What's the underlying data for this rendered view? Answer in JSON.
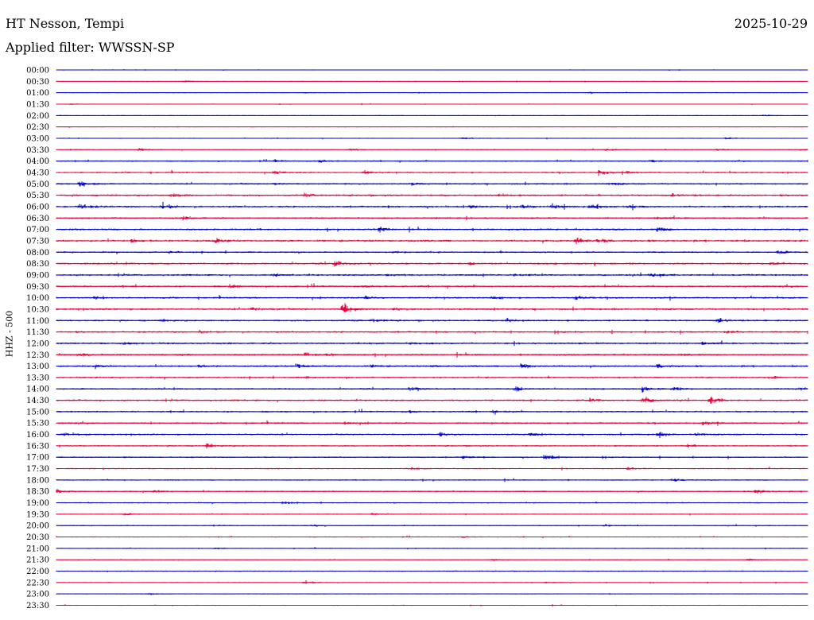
{
  "header": {
    "station": "HT Nesson, Tempi",
    "date": "2025-10-29",
    "filter_label": "Applied filter: WWSSN-SP"
  },
  "chart_data": {
    "type": "line",
    "title": "HT Nesson, Tempi",
    "ylabel": "HHZ - 500",
    "row_labels": [
      "00:00",
      "00:30",
      "01:00",
      "01:30",
      "02:00",
      "02:30",
      "03:00",
      "03:30",
      "04:00",
      "04:30",
      "05:00",
      "05:30",
      "06:00",
      "06:30",
      "07:00",
      "07:30",
      "08:00",
      "08:30",
      "09:00",
      "09:30",
      "10:00",
      "10:30",
      "11:00",
      "11:30",
      "12:00",
      "12:30",
      "13:00",
      "13:30",
      "14:00",
      "14:30",
      "15:00",
      "15:30",
      "16:00",
      "16:30",
      "17:00",
      "17:30",
      "18:00",
      "18:30",
      "19:00",
      "19:30",
      "20:00",
      "20:30",
      "21:00",
      "21:30",
      "22:00",
      "22:30",
      "23:00",
      "23:30"
    ],
    "series_colors": [
      "#0000cc",
      "#e8003a"
    ],
    "noise_level": [
      0.3,
      0.3,
      0.3,
      0.3,
      0.3,
      0.3,
      0.4,
      0.5,
      0.7,
      0.9,
      1.0,
      1.2,
      1.2,
      1.0,
      1.2,
      1.3,
      1.0,
      1.2,
      1.2,
      1.1,
      1.1,
      1.2,
      1.2,
      1.1,
      1.2,
      1.1,
      1.1,
      1.0,
      1.0,
      1.1,
      1.0,
      1.0,
      1.0,
      0.9,
      0.8,
      0.7,
      0.7,
      0.8,
      0.6,
      0.5,
      0.6,
      0.5,
      0.4,
      0.4,
      0.6,
      0.4,
      0.3,
      0.4
    ],
    "events": [
      [],
      [
        [
          0.17,
          1.5
        ]
      ],
      [
        [
          0.33,
          1.2
        ],
        [
          0.71,
          1.5
        ]
      ],
      [
        [
          0.02,
          1.4
        ]
      ],
      [
        [
          0.94,
          1.5
        ]
      ],
      [],
      [
        [
          0.54,
          2.5
        ],
        [
          0.89,
          1.5
        ]
      ],
      [
        [
          0.11,
          2
        ],
        [
          0.39,
          2
        ],
        [
          0.73,
          1.8
        ],
        [
          0.88,
          1.8
        ],
        [
          0.99,
          2
        ]
      ],
      [
        [
          0.29,
          2
        ],
        [
          0.35,
          3.5
        ],
        [
          0.79,
          2.5
        ]
      ],
      [
        [
          0.29,
          3
        ],
        [
          0.41,
          3
        ],
        [
          0.72,
          6
        ],
        [
          0.76,
          2
        ]
      ],
      [
        [
          0.03,
          6
        ],
        [
          0.29,
          2
        ],
        [
          0.47,
          2
        ],
        [
          0.74,
          2
        ]
      ],
      [
        [
          0.15,
          5
        ],
        [
          0.33,
          2
        ],
        [
          0.59,
          2
        ],
        [
          0.82,
          2
        ]
      ],
      [
        [
          0.03,
          6
        ],
        [
          0.14,
          6
        ],
        [
          0.55,
          3
        ],
        [
          0.62,
          3
        ],
        [
          0.66,
          4
        ],
        [
          0.71,
          6
        ],
        [
          0.76,
          3
        ]
      ],
      [
        [
          0.17,
          4
        ],
        [
          0.5,
          2
        ],
        [
          0.8,
          2
        ]
      ],
      [
        [
          0.43,
          5
        ],
        [
          0.8,
          4
        ]
      ],
      [
        [
          0.1,
          3
        ],
        [
          0.21,
          4
        ],
        [
          0.69,
          8
        ],
        [
          0.72,
          4
        ]
      ],
      [
        [
          0.15,
          2
        ],
        [
          0.45,
          2
        ],
        [
          0.96,
          3
        ]
      ],
      [
        [
          0.37,
          5
        ],
        [
          0.55,
          2
        ],
        [
          0.95,
          2
        ]
      ],
      [
        [
          0.29,
          2
        ],
        [
          0.44,
          2
        ],
        [
          0.61,
          2
        ],
        [
          0.79,
          4
        ]
      ],
      [
        [
          0.23,
          3
        ],
        [
          0.41,
          2
        ]
      ],
      [
        [
          0.05,
          2
        ],
        [
          0.41,
          4
        ],
        [
          0.58,
          3
        ],
        [
          0.69,
          5
        ]
      ],
      [
        [
          0.26,
          4
        ],
        [
          0.38,
          13
        ],
        [
          0.45,
          2
        ]
      ],
      [
        [
          0.14,
          2
        ],
        [
          0.42,
          3
        ],
        [
          0.6,
          4
        ],
        [
          0.88,
          4
        ]
      ],
      [
        [
          0.19,
          2
        ],
        [
          0.89,
          3
        ]
      ],
      [
        [
          0.09,
          2
        ],
        [
          0.47,
          2
        ],
        [
          0.86,
          2
        ]
      ],
      [
        [
          0.03,
          5
        ],
        [
          0.16,
          2
        ],
        [
          0.33,
          3
        ],
        [
          0.36,
          3
        ],
        [
          0.83,
          2
        ]
      ],
      [
        [
          0.05,
          2
        ],
        [
          0.19,
          2
        ],
        [
          0.32,
          5
        ],
        [
          0.42,
          2
        ],
        [
          0.5,
          2
        ],
        [
          0.62,
          6
        ],
        [
          0.8,
          4
        ]
      ],
      [
        [
          0.33,
          2
        ],
        [
          0.95,
          3
        ]
      ],
      [
        [
          0.47,
          4
        ],
        [
          0.61,
          5
        ],
        [
          0.78,
          5
        ],
        [
          0.82,
          3
        ],
        [
          0.99,
          3
        ]
      ],
      [
        [
          0.71,
          3
        ],
        [
          0.78,
          7
        ],
        [
          0.87,
          7
        ]
      ],
      [
        [
          0.47,
          2
        ],
        [
          0.58,
          2
        ]
      ],
      [
        [
          0.38,
          3
        ],
        [
          0.86,
          3
        ]
      ],
      [
        [
          0.01,
          2
        ],
        [
          0.51,
          3
        ],
        [
          0.63,
          3
        ],
        [
          0.8,
          5
        ],
        [
          0.85,
          2
        ]
      ],
      [
        [
          0.2,
          4
        ],
        [
          0.84,
          3
        ]
      ],
      [
        [
          0.65,
          7
        ],
        [
          0.54,
          3
        ]
      ],
      [
        [
          0.47,
          2
        ],
        [
          0.76,
          2
        ]
      ],
      [
        [
          0.82,
          3
        ]
      ],
      [
        [
          0.0,
          4
        ],
        [
          0.13,
          2
        ],
        [
          0.93,
          5
        ]
      ],
      [
        [
          0.3,
          3
        ]
      ],
      [
        [
          0.09,
          2
        ],
        [
          0.42,
          2
        ]
      ],
      [
        [
          0.34,
          2
        ],
        [
          0.73,
          2
        ]
      ],
      [
        [
          0.54,
          2
        ]
      ],
      [
        [
          0.21,
          2
        ]
      ],
      [
        [
          0.58,
          2
        ],
        [
          0.92,
          2
        ]
      ],
      [],
      [
        [
          0.33,
          3
        ],
        [
          0.65,
          2
        ]
      ],
      [
        [
          0.12,
          2
        ]
      ],
      []
    ]
  }
}
